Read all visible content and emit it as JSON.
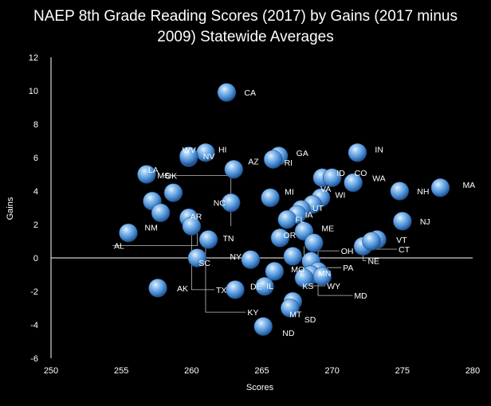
{
  "chart_data": {
    "type": "scatter",
    "title_line1": "NAEP 8th Grade Reading Scores (2017) by Gains (2017 minus",
    "title_line2": "2009) Statewide Averages",
    "xlabel": "Scores",
    "ylabel": "Gains",
    "xlim": [
      250,
      280
    ],
    "ylim": [
      -6,
      12
    ],
    "x_ticks": [
      250,
      255,
      260,
      265,
      270,
      275,
      280
    ],
    "y_ticks": [
      -6,
      -4,
      -2,
      0,
      2,
      4,
      6,
      8,
      10,
      12
    ],
    "grid": false,
    "marker_color": "#5b9bd5",
    "points": [
      {
        "label": "CA",
        "x": 262.5,
        "y": 9.9
      },
      {
        "label": "IN",
        "x": 271.8,
        "y": 6.3
      },
      {
        "label": "GA",
        "x": 266.2,
        "y": 6.1
      },
      {
        "label": "RI",
        "x": 265.8,
        "y": 5.9
      },
      {
        "label": "HI",
        "x": 261.0,
        "y": 6.3
      },
      {
        "label": "NV",
        "x": 259.8,
        "y": 6.0
      },
      {
        "label": "WV",
        "x": 259.8,
        "y": 6.1
      },
      {
        "label": "AZ",
        "x": 263.0,
        "y": 5.3
      },
      {
        "label": "LA",
        "x": 256.8,
        "y": 5.0
      },
      {
        "label": "MS",
        "x": 258.7,
        "y": 3.9
      },
      {
        "label": "ID",
        "x": 269.3,
        "y": 4.8
      },
      {
        "label": "CO",
        "x": 270.0,
        "y": 4.8
      },
      {
        "label": "WA",
        "x": 271.5,
        "y": 4.5
      },
      {
        "label": "MA",
        "x": 277.7,
        "y": 4.2
      },
      {
        "label": "NH",
        "x": 274.8,
        "y": 4.0
      },
      {
        "label": "WI",
        "x": 269.2,
        "y": 3.6
      },
      {
        "label": "MI",
        "x": 265.6,
        "y": 3.6
      },
      {
        "label": "NC",
        "x": 262.8,
        "y": 3.3
      },
      {
        "label": "VA",
        "x": 268.6,
        "y": 3.2
      },
      {
        "label": "OK",
        "x": 257.2,
        "y": 3.4
      },
      {
        "label": "UT",
        "x": 267.8,
        "y": 2.9
      },
      {
        "label": "IA",
        "x": 267.5,
        "y": 2.6
      },
      {
        "label": "FL",
        "x": 266.8,
        "y": 2.3
      },
      {
        "label": "NJ",
        "x": 275.0,
        "y": 2.2
      },
      {
        "label": "NM",
        "x": 257.8,
        "y": 2.7
      },
      {
        "label": "AR",
        "x": 259.8,
        "y": 2.4
      },
      {
        "label": "AL",
        "x": 255.5,
        "y": 1.5
      },
      {
        "label": "KY",
        "x": 260.0,
        "y": 1.9
      },
      {
        "label": "TN",
        "x": 261.2,
        "y": 1.1
      },
      {
        "label": "ME",
        "x": 268.0,
        "y": 1.6
      },
      {
        "label": "OR",
        "x": 266.3,
        "y": 1.2
      },
      {
        "label": "VT",
        "x": 273.2,
        "y": 1.1
      },
      {
        "label": "NE",
        "x": 272.2,
        "y": 0.7
      },
      {
        "label": "CT",
        "x": 272.8,
        "y": 1.0
      },
      {
        "label": "NY",
        "x": 264.2,
        "y": -0.1
      },
      {
        "label": "SC",
        "x": 260.4,
        "y": 0.0
      },
      {
        "label": "MO",
        "x": 267.2,
        "y": 0.1
      },
      {
        "label": "OH",
        "x": 268.7,
        "y": 0.9
      },
      {
        "label": "PA",
        "x": 268.5,
        "y": -0.2
      },
      {
        "label": "MN",
        "x": 269.0,
        "y": -0.8
      },
      {
        "label": "WY",
        "x": 268.5,
        "y": -1.0
      },
      {
        "label": "MD",
        "x": 269.3,
        "y": -1.1
      },
      {
        "label": "KS",
        "x": 268.0,
        "y": -1.2
      },
      {
        "label": "DE",
        "x": 265.2,
        "y": -1.7
      },
      {
        "label": "AK",
        "x": 257.6,
        "y": -1.8
      },
      {
        "label": "TX",
        "x": 263.1,
        "y": -1.9
      },
      {
        "label": "IL",
        "x": 265.9,
        "y": -0.8
      },
      {
        "label": "MT",
        "x": 267.2,
        "y": -2.6
      },
      {
        "label": "SD",
        "x": 267.0,
        "y": -3.0
      },
      {
        "label": "ND",
        "x": 265.1,
        "y": -4.1
      }
    ]
  }
}
